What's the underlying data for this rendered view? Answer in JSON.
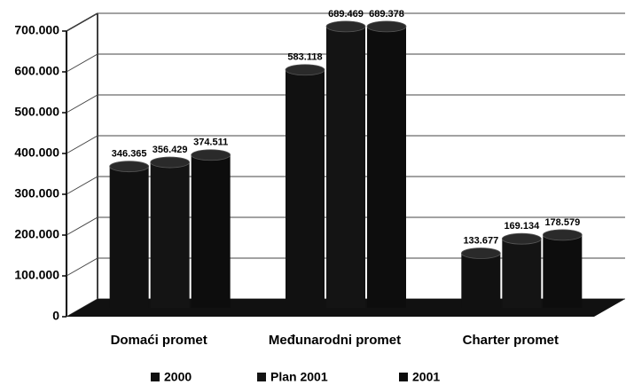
{
  "chart_data": {
    "type": "bar",
    "categories": [
      "Domaći promet",
      "Međunarodni promet",
      "Charter promet"
    ],
    "series": [
      {
        "name": "2000",
        "color": "#111111",
        "values": [
          346365,
          583118,
          133677
        ],
        "value_labels": [
          "346.365",
          "583.118",
          "133.677"
        ]
      },
      {
        "name": "Plan 2001",
        "color": "#141414",
        "values": [
          356429,
          689469,
          169134
        ],
        "value_labels": [
          "356.429",
          "689.469",
          "169.134"
        ]
      },
      {
        "name": "2001",
        "color": "#0d0d0d",
        "values": [
          374511,
          689378,
          178579
        ],
        "value_labels": [
          "374.511",
          "689.378",
          "178.579"
        ]
      }
    ],
    "ylim": [
      0,
      700000
    ],
    "yticks": [
      0,
      {
        "value": 100000,
        "label": "100.000"
      },
      {
        "value": 200000,
        "label": "200.000"
      },
      {
        "value": 300000,
        "label": "300.000"
      },
      {
        "value": 400000,
        "label": "400.000"
      },
      {
        "value": 500000,
        "label": "500.000"
      },
      {
        "value": 600000,
        "label": "600.000"
      },
      {
        "value": 700000,
        "label": "700.000"
      }
    ],
    "grid": true
  }
}
